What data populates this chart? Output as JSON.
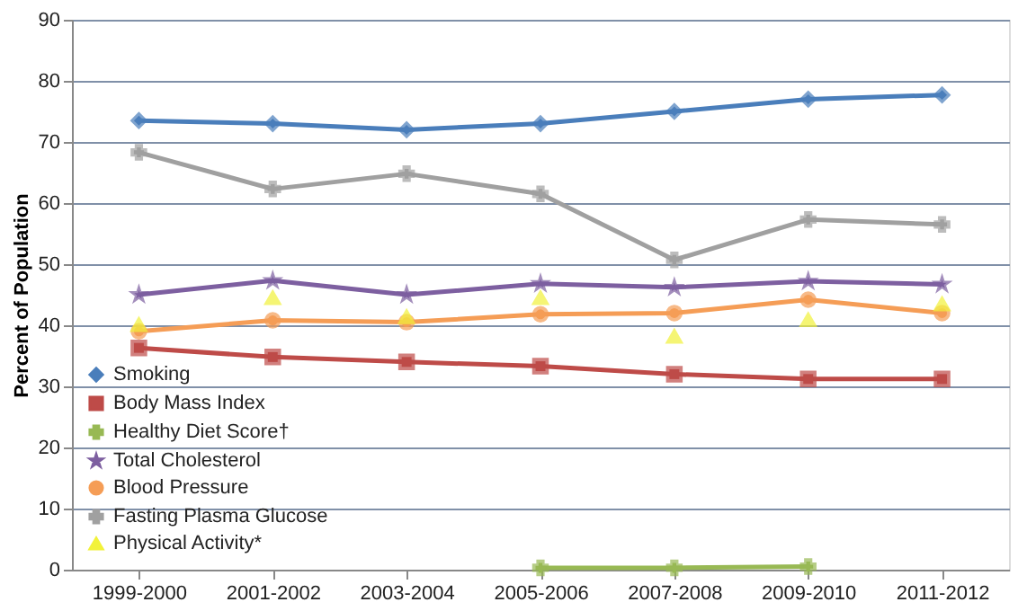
{
  "chart_data": {
    "type": "line",
    "ylabel": "Percent of Population",
    "categories": [
      "1999-2000",
      "2001-2002",
      "2003-2004",
      "2005-2006",
      "2007-2008",
      "2009-2010",
      "2011-2012"
    ],
    "ylim": [
      0,
      90
    ],
    "yticks": [
      0,
      10,
      20,
      30,
      40,
      50,
      60,
      70,
      80,
      90
    ],
    "grid": "y",
    "legend": "bottom left",
    "series": [
      {
        "name": "Smoking",
        "color": "#4a7ebb",
        "marker": "diamond",
        "values": [
          73.5,
          73,
          72,
          73,
          75,
          77,
          77.7
        ]
      },
      {
        "name": "Body Mass Index",
        "color": "#be4b48",
        "marker": "square",
        "values": [
          36.3,
          34.8,
          34,
          33.3,
          32,
          31.2,
          31.2
        ]
      },
      {
        "name": "Healthy Diet Score†",
        "color": "#98b954",
        "marker": "cross",
        "values": [
          null,
          null,
          null,
          0.3,
          0.3,
          0.5,
          null
        ]
      },
      {
        "name": "Total Cholesterol",
        "color": "#7d5fa0",
        "marker": "star",
        "values": [
          45,
          47.3,
          45,
          46.8,
          46.2,
          47.2,
          46.7
        ]
      },
      {
        "name": "Blood Pressure",
        "color": "#f59d56",
        "marker": "circle",
        "values": [
          39,
          40.8,
          40.5,
          41.8,
          42,
          44.2,
          42
        ]
      },
      {
        "name": "Fasting Plasma Glucose",
        "color": "#a0a0a0",
        "marker": "cross",
        "values": [
          68.3,
          62.3,
          64.8,
          61.5,
          50.7,
          57.3,
          56.5
        ]
      },
      {
        "name": "Physical Activity*",
        "color": "#f2f23a",
        "marker": "triangle",
        "type": "scatter",
        "values": [
          40.1,
          44.5,
          41.4,
          44.5,
          38.2,
          40.9,
          43.5
        ]
      }
    ]
  }
}
